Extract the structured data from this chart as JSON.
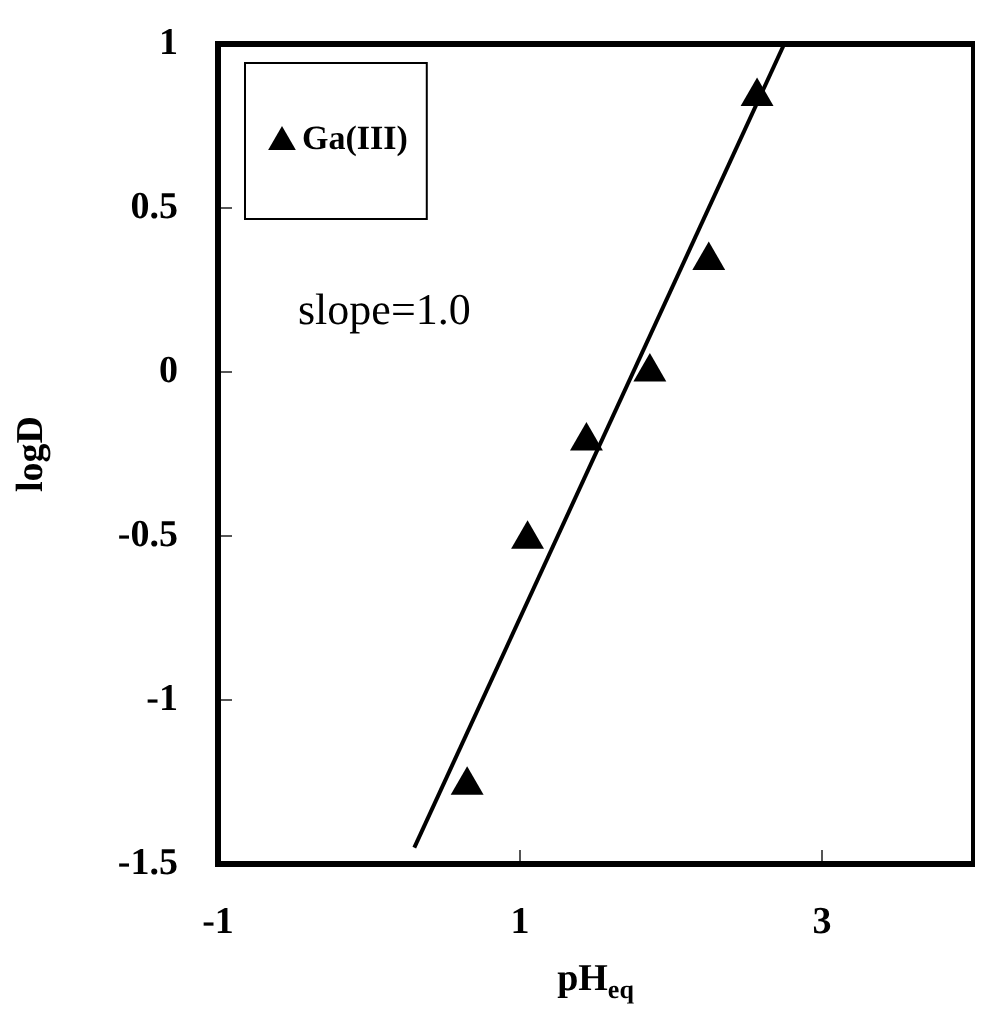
{
  "chart_data": {
    "type": "scatter",
    "xlabel": "pH$_{eq}$",
    "ylabel": "logD",
    "xlim": [
      -1,
      4
    ],
    "ylim": [
      -1.5,
      1
    ],
    "xticks": [
      -1,
      1,
      3
    ],
    "yticks": [
      -1.5,
      -1,
      -0.5,
      0,
      0.5,
      1
    ],
    "grid": false,
    "legend": "top left",
    "annotations": [
      "slope=1.0"
    ],
    "series": [
      {
        "name": "Ga(III)",
        "type": "scatter",
        "color": "#000000",
        "marker": "triangle",
        "x": [
          0.65,
          1.05,
          1.44,
          1.86,
          2.25,
          2.57
        ],
        "values": [
          -1.26,
          -0.51,
          -0.21,
          0.0,
          0.34,
          0.84
        ]
      },
      {
        "type": "line",
        "color": "#000000",
        "marker": "none",
        "x": [
          0.3,
          2.75
        ],
        "values": [
          -1.45,
          1.0
        ]
      }
    ]
  }
}
